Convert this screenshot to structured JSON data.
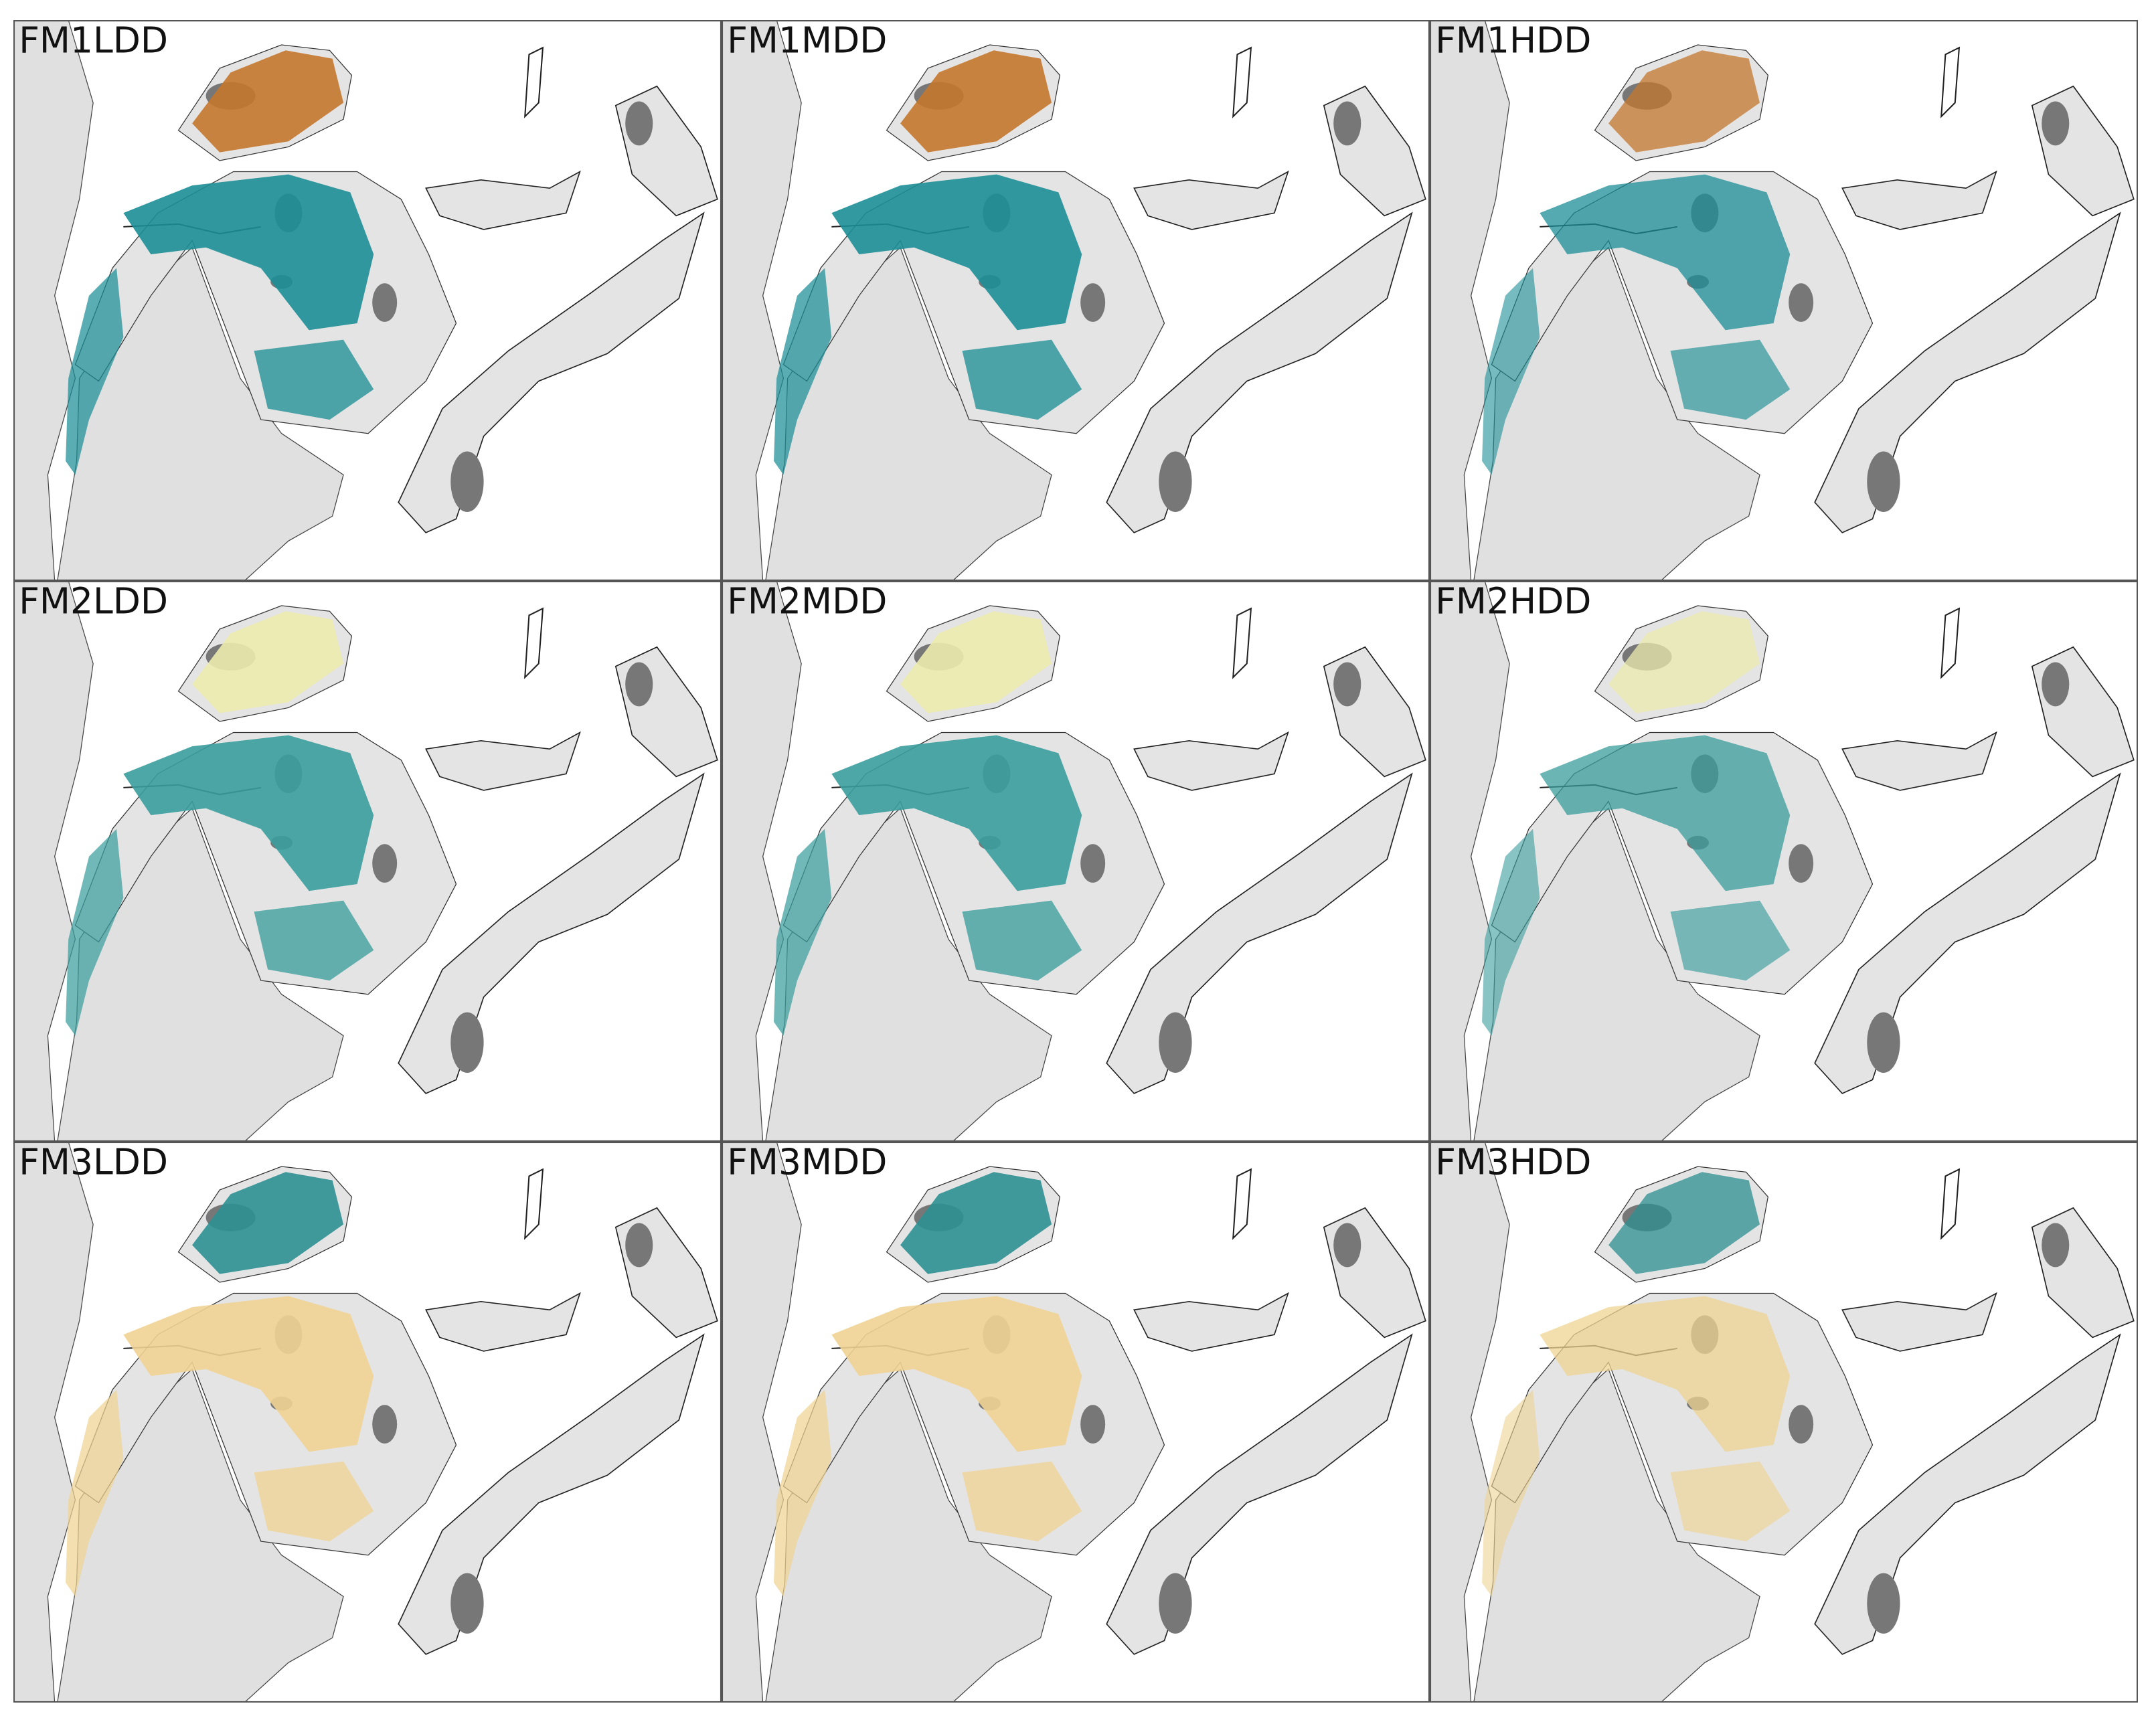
{
  "panels": [
    "FM1LDD",
    "FM1MDD",
    "FM1HDD",
    "FM2LDD",
    "FM2MDD",
    "FM2HDD",
    "FM3LDD",
    "FM3MDD",
    "FM3HDD"
  ]
}
